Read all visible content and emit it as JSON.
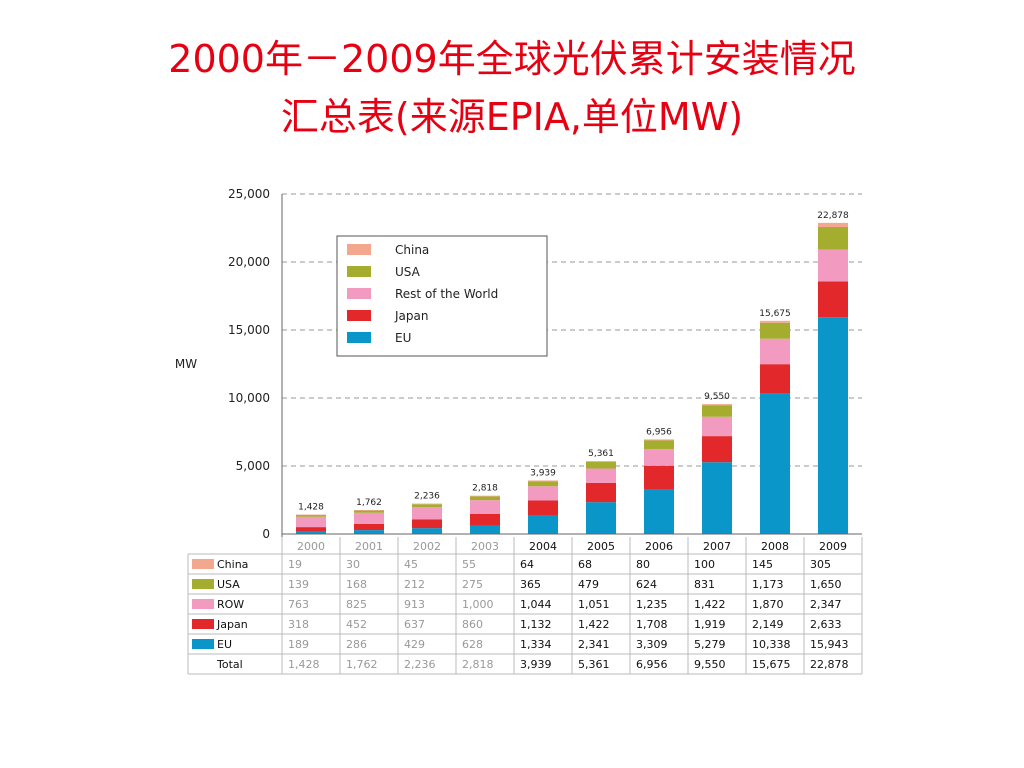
{
  "title": {
    "line1": "2000年－2009年全球光伏累计安装情况",
    "line2": "汇总表(来源EPIA,单位MW)"
  },
  "chart_data": {
    "type": "bar",
    "stacked": true,
    "categories": [
      "2000",
      "2001",
      "2002",
      "2003",
      "2004",
      "2005",
      "2006",
      "2007",
      "2008",
      "2009"
    ],
    "ylabel": "MW",
    "ylim": [
      0,
      25000
    ],
    "yticks": [
      0,
      5000,
      10000,
      15000,
      20000,
      25000
    ],
    "ytick_labels": [
      "0",
      "5,000",
      "10,000",
      "15,000",
      "20,000",
      "25,000"
    ],
    "grid": true,
    "legend_position": "top-left",
    "legend": [
      "China",
      "USA",
      "Rest of the World",
      "Japan",
      "EU"
    ],
    "series": [
      {
        "name": "EU",
        "table_label": "EU",
        "color": "#0a96c8",
        "values": [
          189,
          286,
          429,
          628,
          1334,
          2341,
          3309,
          5279,
          10338,
          15943
        ],
        "labels": [
          "189",
          "286",
          "429",
          "628",
          "1,334",
          "2,341",
          "3,309",
          "5,279",
          "10,338",
          "15,943"
        ]
      },
      {
        "name": "Japan",
        "table_label": "Japan",
        "color": "#e2282a",
        "values": [
          318,
          452,
          637,
          860,
          1132,
          1422,
          1708,
          1919,
          2149,
          2633
        ],
        "labels": [
          "318",
          "452",
          "637",
          "860",
          "1,132",
          "1,422",
          "1,708",
          "1,919",
          "2,149",
          "2,633"
        ]
      },
      {
        "name": "Rest of the World",
        "table_label": "ROW",
        "color": "#f39ac1",
        "values": [
          763,
          825,
          913,
          1000,
          1044,
          1051,
          1235,
          1422,
          1870,
          2347
        ],
        "labels": [
          "763",
          "825",
          "913",
          "1,000",
          "1,044",
          "1,051",
          "1,235",
          "1,422",
          "1,870",
          "2,347"
        ]
      },
      {
        "name": "USA",
        "table_label": "USA",
        "color": "#a5ad2e",
        "values": [
          139,
          168,
          212,
          275,
          365,
          479,
          624,
          831,
          1173,
          1650
        ],
        "labels": [
          "139",
          "168",
          "212",
          "275",
          "365",
          "479",
          "624",
          "831",
          "1,173",
          "1,650"
        ]
      },
      {
        "name": "China",
        "table_label": "China",
        "color": "#f4a78f",
        "values": [
          19,
          30,
          45,
          55,
          64,
          68,
          80,
          100,
          145,
          305
        ],
        "labels": [
          "19",
          "30",
          "45",
          "55",
          "64",
          "68",
          "80",
          "100",
          "145",
          "305"
        ]
      }
    ],
    "totals": [
      1428,
      1762,
      2236,
      2818,
      3939,
      5361,
      6956,
      9550,
      15675,
      22878
    ],
    "total_labels": [
      "1,428",
      "1,762",
      "2,236",
      "2,818",
      "3,939",
      "5,361",
      "6,956",
      "9,550",
      "15,675",
      "22,878"
    ],
    "table": {
      "row_order": [
        "China",
        "USA",
        "Rest of the World",
        "Japan",
        "EU"
      ],
      "total_label": "Total"
    }
  }
}
